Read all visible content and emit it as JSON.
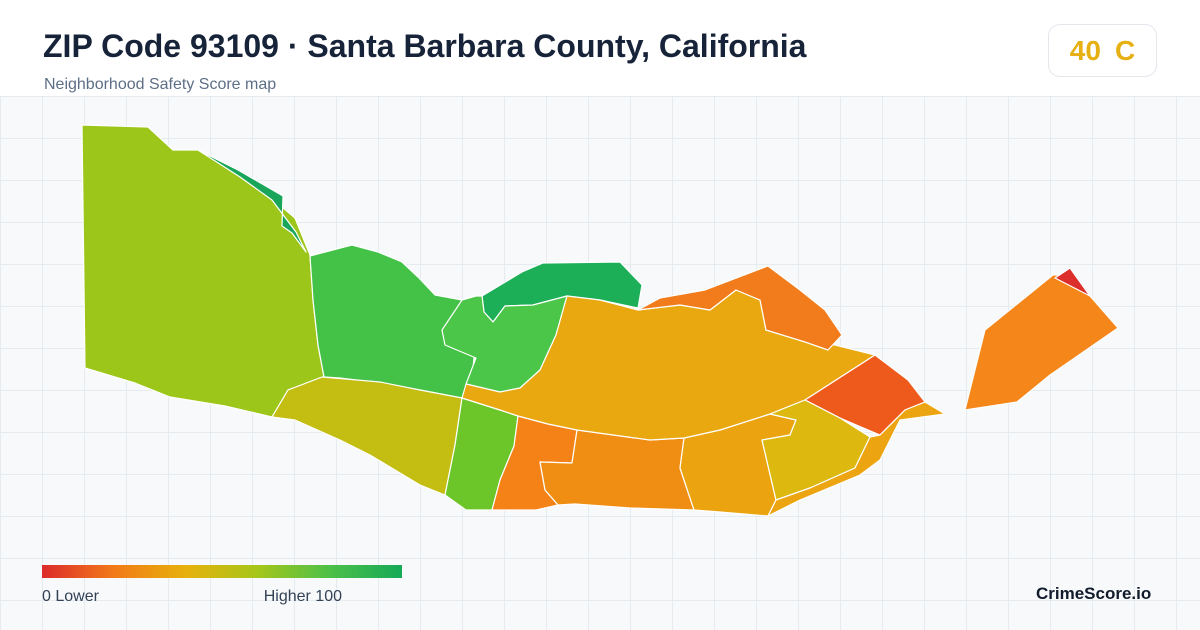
{
  "header": {
    "title": "ZIP Code 93109 · Santa Barbara County, California",
    "subtitle": "Neighborhood Safety Score map"
  },
  "score_badge": {
    "score": "40",
    "grade": "C",
    "color": "#e6b012"
  },
  "map": {
    "regions": [
      {
        "id": "far-west",
        "color": "#9dc61a"
      },
      {
        "id": "northwest-edge",
        "color": "#1aa65a"
      },
      {
        "id": "west-central",
        "color": "#44c248"
      },
      {
        "id": "north-peak",
        "color": "#1caf58"
      },
      {
        "id": "north-notch",
        "color": "#4cc648"
      },
      {
        "id": "southwest-strip",
        "color": "#c4bd12"
      },
      {
        "id": "center-column",
        "color": "#6cc62a"
      },
      {
        "id": "center-orange-west",
        "color": "#f58216"
      },
      {
        "id": "center-orange-mid",
        "color": "#f08e14"
      },
      {
        "id": "center-yellow-south",
        "color": "#eba30f"
      },
      {
        "id": "center-north-large",
        "color": "#e9a80f"
      },
      {
        "id": "north-orange-band",
        "color": "#f27c1c"
      },
      {
        "id": "east-red",
        "color": "#ee5a1c"
      },
      {
        "id": "east-yellow-green",
        "color": "#ddb80f"
      },
      {
        "id": "east-tail",
        "color": "#eca411"
      },
      {
        "id": "east-island-orange",
        "color": "#f4861a"
      },
      {
        "id": "east-island-red-tip",
        "color": "#dc2f2b"
      }
    ]
  },
  "legend": {
    "low_label": "0  Lower",
    "high_label": "Higher  100",
    "colors": [
      "#dc2b2b",
      "#f27a18",
      "#e7b10c",
      "#a5c61a",
      "#4cc048",
      "#16a957"
    ]
  },
  "brand": "CrimeScore.io"
}
